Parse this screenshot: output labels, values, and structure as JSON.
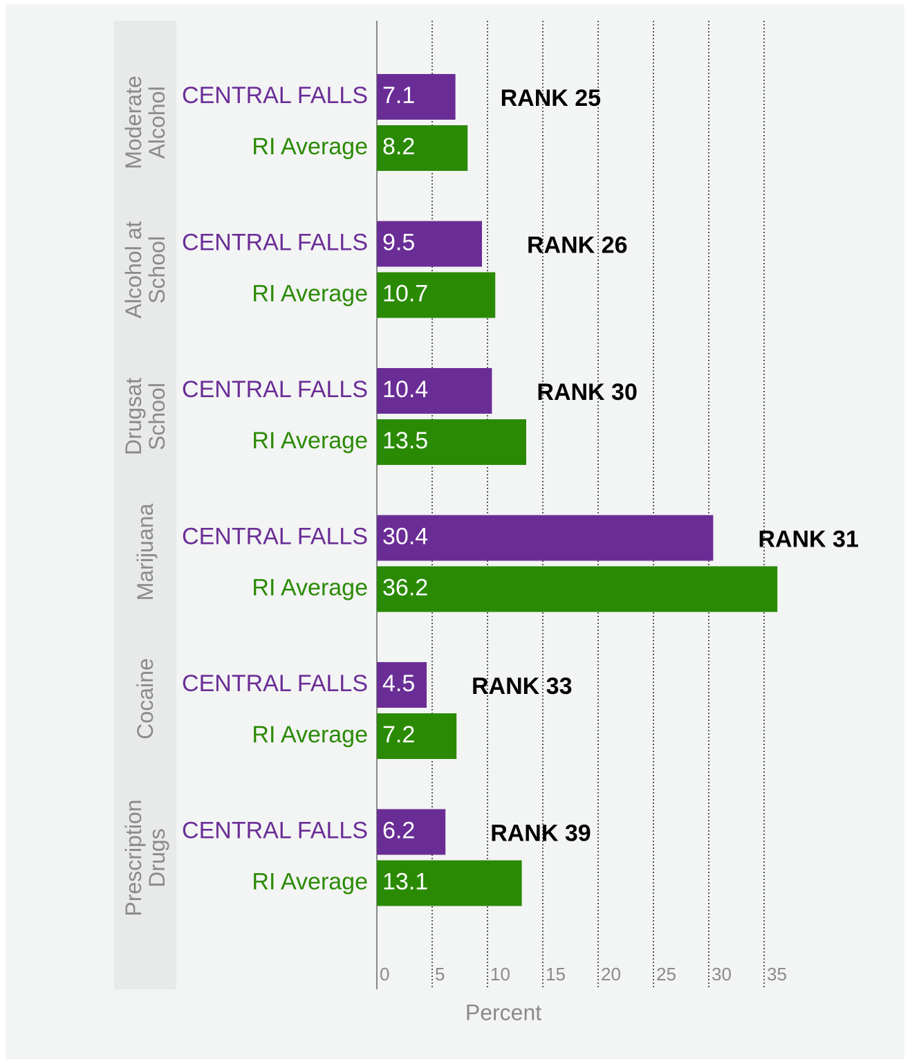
{
  "chart_data": {
    "type": "bar",
    "orientation": "horizontal",
    "categories": [
      "Moderate Alcohol",
      "Alcohol at School",
      "Drugsat School",
      "Marijuana",
      "Cocaine",
      "Prescription Drugs"
    ],
    "series": [
      {
        "name": "CENTRAL FALLS",
        "color": "#6a2d96",
        "values": [
          7.1,
          9.5,
          10.4,
          30.4,
          4.5,
          6.2
        ]
      },
      {
        "name": "RI Average",
        "color": "#2a8a04",
        "values": [
          8.2,
          10.7,
          13.5,
          36.2,
          7.2,
          13.1
        ]
      }
    ],
    "annotations": [
      "RANK 25",
      "RANK 26",
      "RANK 30",
      "RANK 31",
      "RANK 33",
      "RANK 39"
    ],
    "x_label": "Percent",
    "xlim": [
      0,
      46
    ],
    "xticks": [
      0,
      5,
      10,
      15,
      20,
      25,
      30,
      35
    ],
    "grid": true
  }
}
